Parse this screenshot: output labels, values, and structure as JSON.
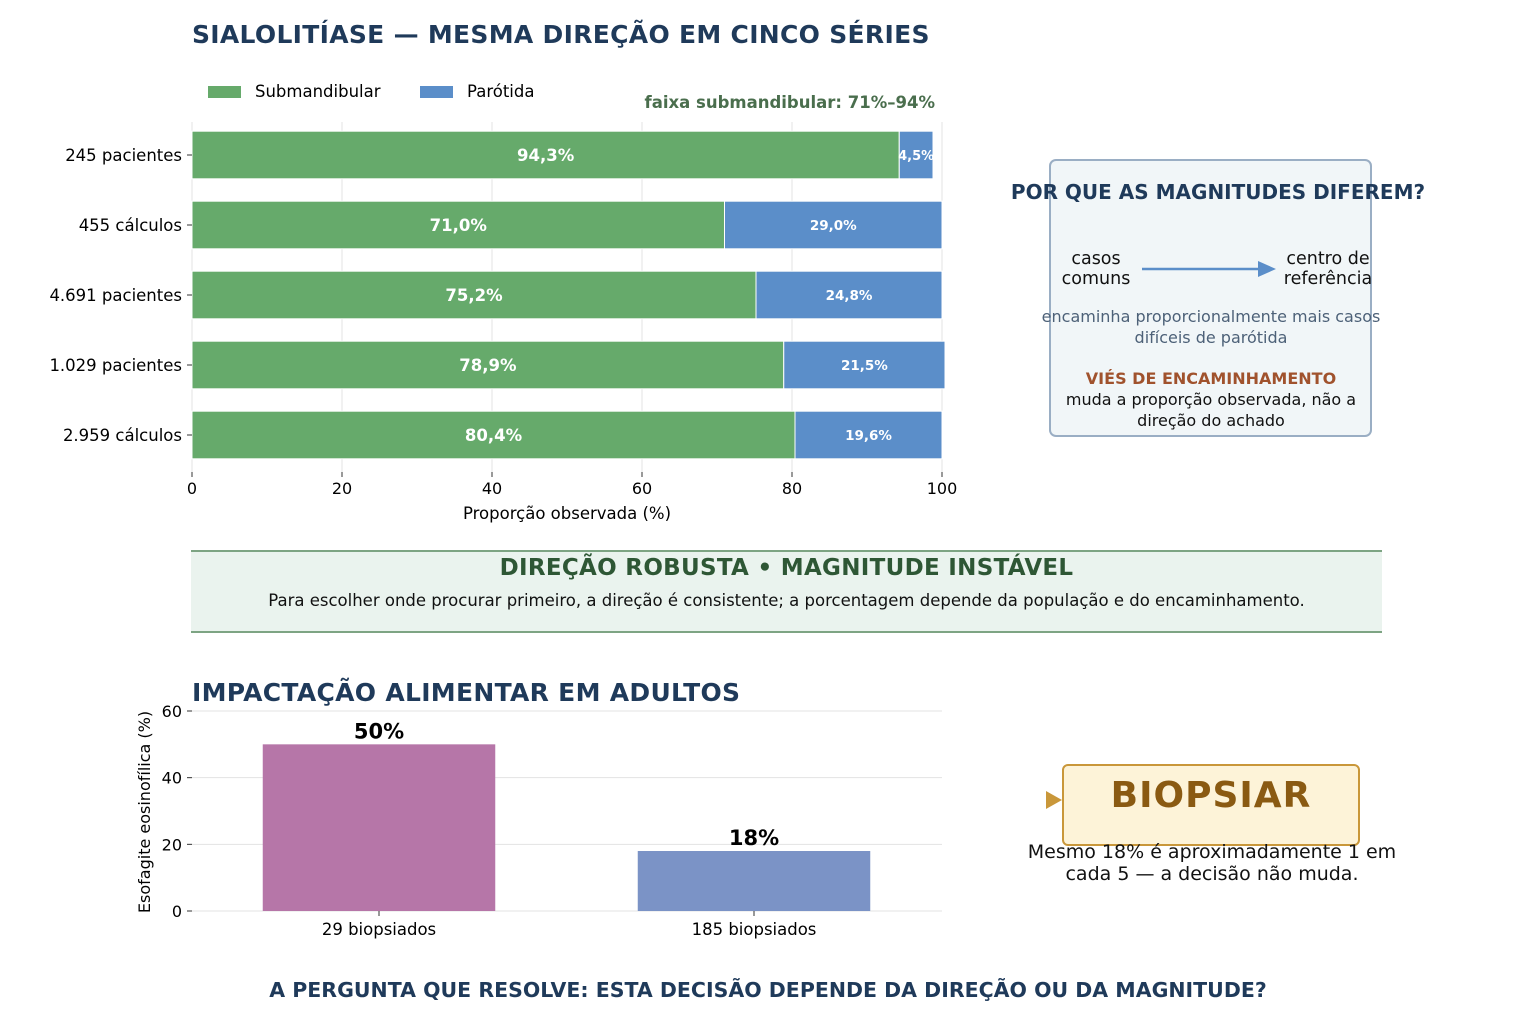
{
  "title": "SIALOLITÍASE — MESMA DIREÇÃO EM CINCO SÉRIES",
  "colors": {
    "submandibular": "#66aa6b",
    "parotida": "#5b8ec9",
    "title": "#1f3a5a",
    "bar_a": "#b676a8",
    "bar_b": "#7b93c6"
  },
  "chart_data": [
    {
      "type": "bar",
      "orientation": "horizontal",
      "stacked": true,
      "categories": [
        "245 pacientes",
        "455 cálculos",
        "4.691 pacientes",
        "1.029 pacientes",
        "2.959 cálculos"
      ],
      "series": [
        {
          "name": "Submandibular",
          "values": [
            94.3,
            71.0,
            75.2,
            78.9,
            80.4
          ],
          "labels": [
            "94,3%",
            "71,0%",
            "75,2%",
            "78,9%",
            "80,4%"
          ]
        },
        {
          "name": "Parótida",
          "values": [
            4.5,
            29.0,
            24.8,
            21.5,
            19.6
          ],
          "labels": [
            "4,5%",
            "29,0%",
            "24,8%",
            "21,5%",
            "19,6%"
          ]
        }
      ],
      "xlabel": "Proporção observada (%)",
      "xlim": [
        0,
        100
      ],
      "xticks": [
        "0",
        "20",
        "40",
        "60",
        "80",
        "100"
      ],
      "grid": "vertical",
      "legend": "top-left",
      "annotation": "faixa submandibular: 71%–94%"
    },
    {
      "type": "bar",
      "title": "IMPACTAÇÃO ALIMENTAR EM ADULTOS",
      "categories": [
        "29 biopsiados",
        "185 biopsiados"
      ],
      "values": [
        50,
        18
      ],
      "labels": [
        "50%",
        "18%"
      ],
      "ylabel": "Esofagite eosinofílica (%)",
      "ylim": [
        0,
        60
      ],
      "yticks": [
        "0",
        "20",
        "40",
        "60"
      ],
      "grid": "horizontal"
    }
  ],
  "referral": {
    "title": "POR QUE AS MAGNITUDES DIFEREM?",
    "from": "casos comuns",
    "to": "centro de referência",
    "note": "encaminha proporcionalmente mais casos difíceis de parótida",
    "bias_head": "VIÉS DE ENCAMINHAMENTO",
    "bias_text": "muda a proporção observada, não a direção do achado"
  },
  "banner": {
    "title": "DIREÇÃO ROBUSTA • MAGNITUDE INSTÁVEL",
    "text": "Para escolher onde procurar primeiro, a direção é consistente; a porcentagem depende da população e do encaminhamento."
  },
  "biopsy": {
    "label": "BIOPSIAR",
    "note": "Mesmo 18% é aproximadamente 1 em cada 5 — a decisão não muda."
  },
  "question": "A PERGUNTA QUE RESOLVE: ESTA DECISÃO DEPENDE DA DIREÇÃO OU DA MAGNITUDE?"
}
